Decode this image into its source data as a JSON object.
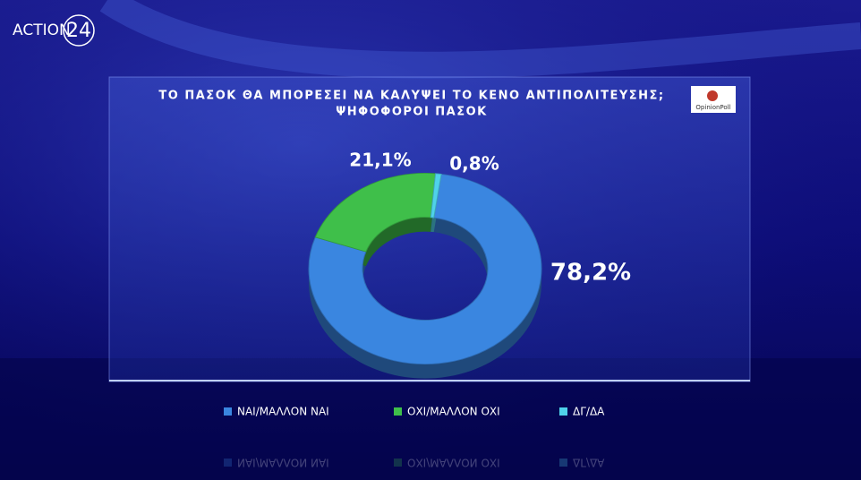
{
  "channel_logo": {
    "name": "ACTION",
    "number": "24"
  },
  "pollster": "OpinionPoll",
  "chart_data": {
    "type": "pie",
    "title": "ΤΟ ΠΑΣΟΚ ΘΑ ΜΠΟΡΕΣΕΙ ΝΑ ΚΑΛΥΨΕΙ ΤΟ ΚΕΝΟ ΑΝΤΙΠΟΛΙΤΕΥΣΗΣ;",
    "subtitle": "ΨΗΦΟΦΟΡΟΙ ΠΑΣΟΚ",
    "categories": [
      "ΝΑΙ/ΜΑΛΛΟΝ ΝΑΙ",
      "ΟΧΙ/ΜΑΛΛΟΝ ΟΧΙ",
      "ΔΓ/ΔΑ"
    ],
    "values": [
      78.2,
      21.1,
      0.8
    ],
    "value_labels": [
      "78,2%",
      "21,1%",
      "0,8%"
    ],
    "colors": [
      "#3a86e0",
      "#3fbf4a",
      "#4fd2ea"
    ],
    "donut": true,
    "legend": "bottom"
  }
}
